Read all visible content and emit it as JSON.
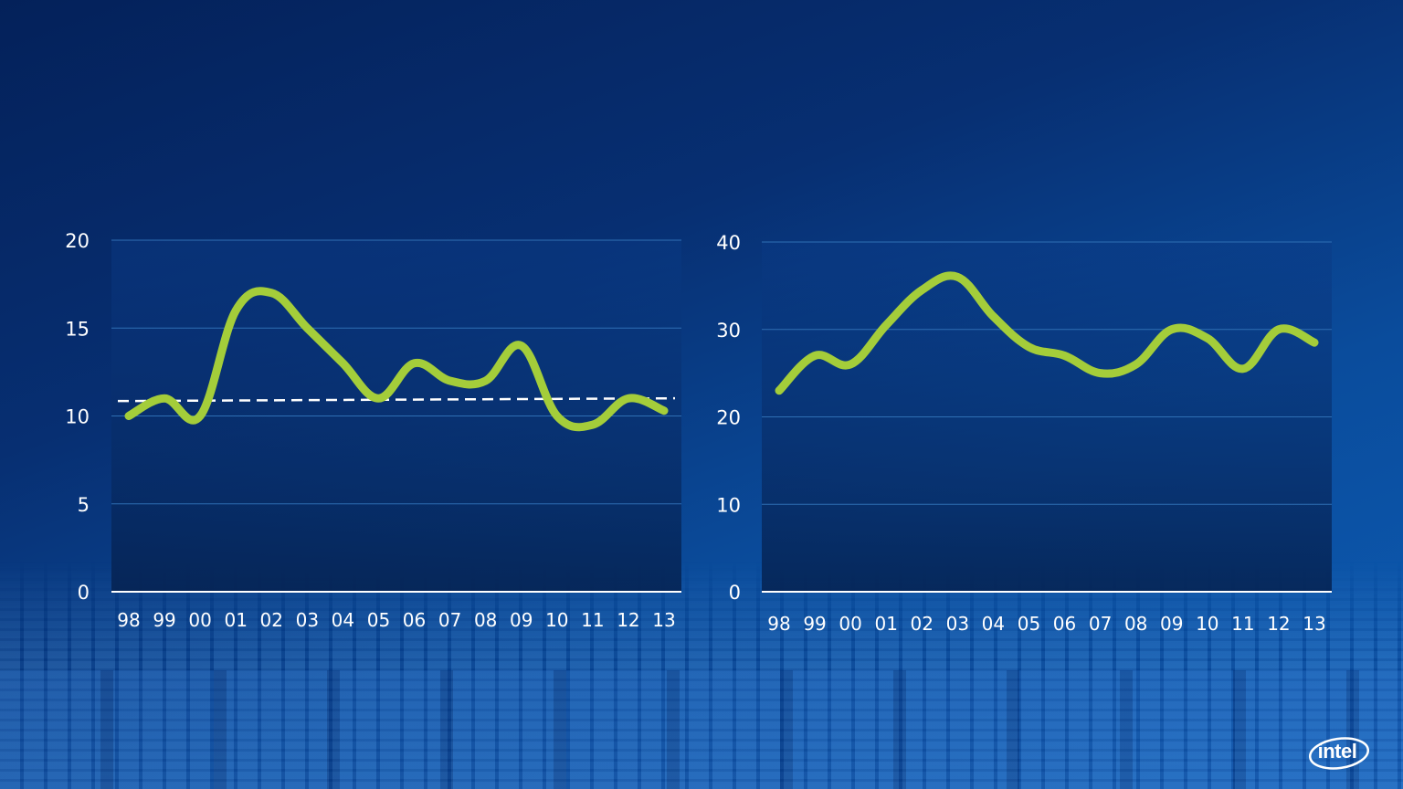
{
  "chart_data": [
    {
      "type": "line",
      "categories": [
        "98",
        "99",
        "00",
        "01",
        "02",
        "03",
        "04",
        "05",
        "06",
        "07",
        "08",
        "09",
        "10",
        "11",
        "12",
        "13"
      ],
      "series": [
        {
          "values": [
            10,
            11,
            10,
            16,
            17,
            15,
            13,
            11,
            13,
            12,
            12,
            14,
            10,
            9.5,
            11,
            10.3
          ]
        }
      ],
      "reference_line": 10.9,
      "yticks": [
        "0",
        "5",
        "10",
        "15",
        "20"
      ],
      "ylim": [
        0,
        20
      ],
      "grid": true
    },
    {
      "type": "line",
      "categories": [
        "98",
        "99",
        "00",
        "01",
        "02",
        "03",
        "04",
        "05",
        "06",
        "07",
        "08",
        "09",
        "10",
        "11",
        "12",
        "13"
      ],
      "series": [
        {
          "values": [
            23,
            27,
            26,
            30.5,
            34.5,
            36,
            31.5,
            28,
            27,
            25,
            26,
            30,
            29,
            25.5,
            30,
            28.5
          ]
        }
      ],
      "yticks": [
        "0",
        "10",
        "20",
        "30",
        "40"
      ],
      "ylim": [
        0,
        40
      ],
      "grid": true
    }
  ],
  "colors": {
    "line": "#a4cd3a",
    "reference": "#ffffff",
    "grid": "#2f6fb4",
    "text": "#ffffff"
  },
  "logo": {
    "text": "intel"
  }
}
